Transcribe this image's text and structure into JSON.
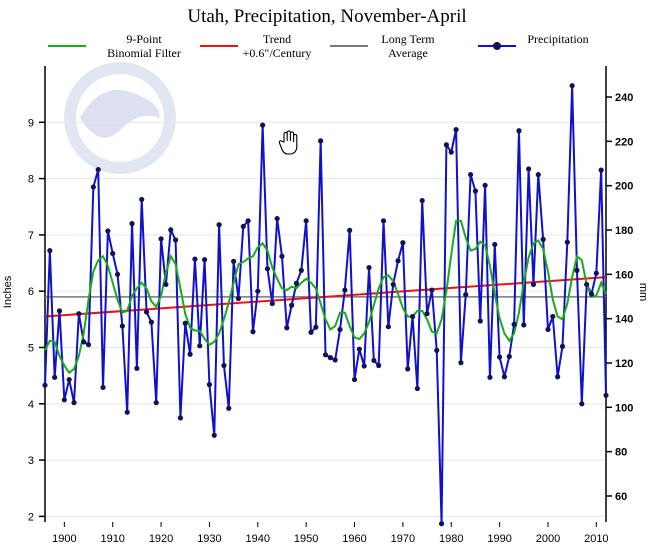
{
  "chart_data": {
    "type": "line",
    "title": "Utah, Precipitation, November-April",
    "ylabel_left": "Inches",
    "ylabel_right": "mm",
    "xlim": [
      1896,
      2012
    ],
    "ylim_left": [
      1.9,
      10.0
    ],
    "ylim_right_ticks": [
      60,
      80,
      100,
      120,
      140,
      160,
      180,
      200,
      220,
      240
    ],
    "yticks_left": [
      2,
      3,
      4,
      5,
      6,
      7,
      8,
      9
    ],
    "xticks": [
      1900,
      1910,
      1920,
      1930,
      1940,
      1950,
      1960,
      1970,
      1980,
      1990,
      2000,
      2010
    ],
    "legend": [
      {
        "label": "9-Point\nBinomial Filter",
        "color": "#1aaa1a"
      },
      {
        "label": "Trend\n+0.6\"/Century",
        "color": "#ee1111"
      },
      {
        "label": "Long Term\nAverage",
        "color": "#777777"
      },
      {
        "label": "Precipitation",
        "color": "#1111cc"
      }
    ],
    "long_term_average": 5.9,
    "trend": {
      "start": [
        1896,
        5.55
      ],
      "end": [
        2012,
        6.25
      ]
    },
    "series": [
      {
        "name": "Precipitation",
        "color": "#1111cc",
        "x_start": 1896,
        "values": [
          4.33,
          6.72,
          4.47,
          5.65,
          4.07,
          4.43,
          4.02,
          5.6,
          5.1,
          5.05,
          7.85,
          8.16,
          4.29,
          7.07,
          6.67,
          6.3,
          5.38,
          3.85,
          7.2,
          4.63,
          7.63,
          5.63,
          5.45,
          4.02,
          6.93,
          6.12,
          7.09,
          6.91,
          3.75,
          5.43,
          4.88,
          6.57,
          5.03,
          6.56,
          4.34,
          3.44,
          7.18,
          4.68,
          3.92,
          6.53,
          5.87,
          7.15,
          7.25,
          5.28,
          6.0,
          8.95,
          6.4,
          5.78,
          7.29,
          6.62,
          5.35,
          5.75,
          6.14,
          6.37,
          7.25,
          5.27,
          5.36,
          8.67,
          4.87,
          4.82,
          4.78,
          5.32,
          6.02,
          7.08,
          4.43,
          4.97,
          4.67,
          6.42,
          4.77,
          4.68,
          7.25,
          5.37,
          6.12,
          6.54,
          6.86,
          4.62,
          5.55,
          4.27,
          7.61,
          5.6,
          6.02,
          4.95,
          1.87,
          8.6,
          8.47,
          8.87,
          4.73,
          5.94,
          8.07,
          7.78,
          5.47,
          7.88,
          4.47,
          6.83,
          4.83,
          4.48,
          4.84,
          5.41,
          8.85,
          5.4,
          8.17,
          6.12,
          8.07,
          6.92,
          5.32,
          5.55,
          4.48,
          5.02,
          6.87,
          9.65,
          6.37,
          4.0,
          6.12,
          5.95,
          6.32,
          8.15,
          4.15
        ]
      },
      {
        "name": "9-Point Binomial Filter",
        "color": "#1aaa1a",
        "x_start": 1896,
        "values": [
          4.95,
          5.12,
          5.1,
          4.85,
          4.68,
          4.55,
          4.62,
          4.85,
          5.25,
          5.85,
          6.35,
          6.55,
          6.62,
          6.45,
          6.15,
          5.85,
          5.62,
          5.65,
          5.92,
          6.05,
          6.15,
          6.05,
          5.82,
          5.72,
          5.92,
          6.32,
          6.62,
          6.48,
          6.05,
          5.6,
          5.35,
          5.3,
          5.3,
          5.15,
          5.05,
          5.1,
          5.25,
          5.5,
          5.8,
          6.15,
          6.48,
          6.52,
          6.58,
          6.62,
          6.78,
          6.85,
          6.72,
          6.42,
          6.22,
          6.05,
          6.02,
          6.08,
          6.05,
          6.15,
          6.22,
          6.15,
          6.05,
          5.78,
          5.5,
          5.32,
          5.38,
          5.62,
          5.62,
          5.38,
          5.18,
          5.15,
          5.25,
          5.45,
          5.75,
          6.05,
          6.25,
          6.28,
          6.18,
          5.95,
          5.7,
          5.55,
          5.55,
          5.65,
          5.65,
          5.5,
          5.28,
          5.25,
          5.5,
          6.0,
          6.65,
          7.25,
          7.25,
          6.95,
          6.72,
          6.75,
          6.88,
          6.82,
          6.45,
          5.95,
          5.52,
          5.25,
          5.12,
          5.25,
          5.62,
          6.15,
          6.6,
          6.85,
          6.9,
          6.75,
          6.35,
          5.85,
          5.55,
          5.5,
          5.78,
          6.25,
          6.62,
          6.55,
          6.12,
          5.9,
          5.92,
          6.15,
          5.95
        ]
      }
    ]
  }
}
